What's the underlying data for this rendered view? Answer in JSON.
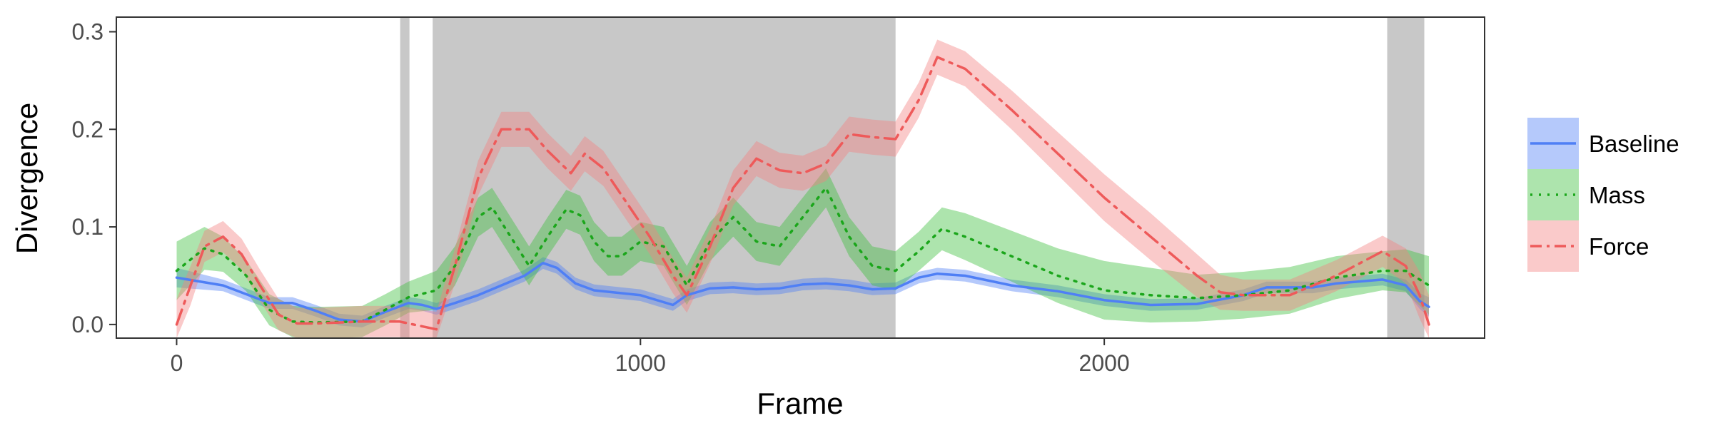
{
  "chart_data": {
    "type": "line",
    "xlabel": "Frame",
    "ylabel": "Divergence",
    "xlim": [
      -130,
      2820
    ],
    "ylim": [
      -0.014,
      0.315
    ],
    "x_ticks": [
      0,
      1000,
      2000
    ],
    "x_tick_labels": [
      "0",
      "1000",
      "2000"
    ],
    "y_ticks": [
      0.0,
      0.1,
      0.2,
      0.3
    ],
    "y_tick_labels": [
      "0.0",
      "0.1",
      "0.2",
      "0.3"
    ],
    "grid": false,
    "legend_position": "right",
    "shaded_regions": [
      {
        "start": 482,
        "end": 502
      },
      {
        "start": 552,
        "end": 1550
      },
      {
        "start": 2610,
        "end": 2690
      }
    ],
    "shade_color": "#c8c8c8",
    "series": [
      {
        "name": "Baseline",
        "color": "#4f7ff5",
        "dash": "solid",
        "points": [
          [
            0,
            0.048
          ],
          [
            100,
            0.04
          ],
          [
            200,
            0.022
          ],
          [
            250,
            0.022
          ],
          [
            300,
            0.014
          ],
          [
            350,
            0.005
          ],
          [
            400,
            0.003
          ],
          [
            450,
            0.013
          ],
          [
            500,
            0.022
          ],
          [
            530,
            0.02
          ],
          [
            560,
            0.016
          ],
          [
            600,
            0.022
          ],
          [
            650,
            0.03
          ],
          [
            700,
            0.04
          ],
          [
            750,
            0.05
          ],
          [
            790,
            0.063
          ],
          [
            820,
            0.058
          ],
          [
            860,
            0.042
          ],
          [
            900,
            0.035
          ],
          [
            1000,
            0.03
          ],
          [
            1070,
            0.02
          ],
          [
            1100,
            0.03
          ],
          [
            1150,
            0.037
          ],
          [
            1200,
            0.038
          ],
          [
            1250,
            0.036
          ],
          [
            1300,
            0.037
          ],
          [
            1350,
            0.041
          ],
          [
            1400,
            0.042
          ],
          [
            1450,
            0.04
          ],
          [
            1500,
            0.036
          ],
          [
            1550,
            0.037
          ],
          [
            1600,
            0.048
          ],
          [
            1640,
            0.052
          ],
          [
            1700,
            0.05
          ],
          [
            1800,
            0.04
          ],
          [
            1900,
            0.034
          ],
          [
            2000,
            0.025
          ],
          [
            2100,
            0.02
          ],
          [
            2200,
            0.021
          ],
          [
            2300,
            0.03
          ],
          [
            2350,
            0.038
          ],
          [
            2400,
            0.038
          ],
          [
            2450,
            0.038
          ],
          [
            2500,
            0.042
          ],
          [
            2600,
            0.046
          ],
          [
            2650,
            0.04
          ],
          [
            2680,
            0.024
          ],
          [
            2700,
            0.018
          ]
        ],
        "band": [
          0.01,
          0.006,
          0.006,
          0.006,
          0.006,
          0.006,
          0.006,
          0.006,
          0.006,
          0.006,
          0.006,
          0.006,
          0.006,
          0.006,
          0.006,
          0.006,
          0.006,
          0.006,
          0.006,
          0.006,
          0.006,
          0.006,
          0.006,
          0.006,
          0.006,
          0.006,
          0.006,
          0.006,
          0.006,
          0.006,
          0.006,
          0.006,
          0.006,
          0.006,
          0.006,
          0.006,
          0.006,
          0.006,
          0.006,
          0.006,
          0.006,
          0.006,
          0.006,
          0.006,
          0.006,
          0.006,
          0.008,
          0.01
        ]
      },
      {
        "name": "Mass",
        "color": "#1ba61b",
        "band_color": "#3cbf3c",
        "dash": "dotted",
        "points": [
          [
            0,
            0.055
          ],
          [
            60,
            0.078
          ],
          [
            100,
            0.072
          ],
          [
            150,
            0.05
          ],
          [
            200,
            0.015
          ],
          [
            250,
            0.003
          ],
          [
            300,
            0.002
          ],
          [
            400,
            0.003
          ],
          [
            450,
            0.015
          ],
          [
            500,
            0.028
          ],
          [
            560,
            0.035
          ],
          [
            600,
            0.06
          ],
          [
            650,
            0.11
          ],
          [
            680,
            0.12
          ],
          [
            720,
            0.09
          ],
          [
            760,
            0.06
          ],
          [
            800,
            0.09
          ],
          [
            840,
            0.118
          ],
          [
            870,
            0.112
          ],
          [
            900,
            0.085
          ],
          [
            930,
            0.07
          ],
          [
            960,
            0.07
          ],
          [
            1000,
            0.085
          ],
          [
            1050,
            0.08
          ],
          [
            1100,
            0.04
          ],
          [
            1150,
            0.085
          ],
          [
            1200,
            0.11
          ],
          [
            1250,
            0.085
          ],
          [
            1300,
            0.08
          ],
          [
            1350,
            0.11
          ],
          [
            1400,
            0.14
          ],
          [
            1450,
            0.09
          ],
          [
            1500,
            0.06
          ],
          [
            1550,
            0.055
          ],
          [
            1600,
            0.075
          ],
          [
            1650,
            0.098
          ],
          [
            1700,
            0.09
          ],
          [
            1800,
            0.07
          ],
          [
            1900,
            0.05
          ],
          [
            2000,
            0.035
          ],
          [
            2100,
            0.03
          ],
          [
            2200,
            0.027
          ],
          [
            2300,
            0.03
          ],
          [
            2400,
            0.035
          ],
          [
            2500,
            0.048
          ],
          [
            2600,
            0.055
          ],
          [
            2650,
            0.055
          ],
          [
            2700,
            0.04
          ]
        ],
        "band": [
          0.03,
          0.022,
          0.018,
          0.016,
          0.016,
          0.016,
          0.016,
          0.016,
          0.016,
          0.016,
          0.02,
          0.02,
          0.02,
          0.02,
          0.02,
          0.02,
          0.02,
          0.02,
          0.02,
          0.02,
          0.02,
          0.02,
          0.02,
          0.02,
          0.02,
          0.02,
          0.02,
          0.02,
          0.02,
          0.02,
          0.02,
          0.02,
          0.02,
          0.02,
          0.02,
          0.022,
          0.024,
          0.026,
          0.028,
          0.03,
          0.028,
          0.024,
          0.024,
          0.024,
          0.022,
          0.02,
          0.022,
          0.03
        ]
      },
      {
        "name": "Force",
        "color": "#ee5a5a",
        "band_color": "#f28080",
        "dash": "dashdot",
        "points": [
          [
            0,
            0.0
          ],
          [
            30,
            0.04
          ],
          [
            60,
            0.08
          ],
          [
            100,
            0.09
          ],
          [
            140,
            0.072
          ],
          [
            180,
            0.04
          ],
          [
            220,
            0.01
          ],
          [
            260,
            0.001
          ],
          [
            300,
            0.001
          ],
          [
            400,
            0.003
          ],
          [
            480,
            0.003
          ],
          [
            560,
            -0.005
          ],
          [
            600,
            0.06
          ],
          [
            650,
            0.15
          ],
          [
            700,
            0.2
          ],
          [
            760,
            0.2
          ],
          [
            800,
            0.178
          ],
          [
            850,
            0.155
          ],
          [
            880,
            0.175
          ],
          [
            920,
            0.16
          ],
          [
            970,
            0.125
          ],
          [
            1020,
            0.09
          ],
          [
            1070,
            0.05
          ],
          [
            1100,
            0.03
          ],
          [
            1150,
            0.08
          ],
          [
            1200,
            0.14
          ],
          [
            1250,
            0.17
          ],
          [
            1300,
            0.158
          ],
          [
            1350,
            0.155
          ],
          [
            1400,
            0.165
          ],
          [
            1450,
            0.195
          ],
          [
            1500,
            0.192
          ],
          [
            1550,
            0.19
          ],
          [
            1600,
            0.23
          ],
          [
            1640,
            0.274
          ],
          [
            1700,
            0.262
          ],
          [
            1800,
            0.22
          ],
          [
            1900,
            0.175
          ],
          [
            2000,
            0.13
          ],
          [
            2100,
            0.09
          ],
          [
            2200,
            0.05
          ],
          [
            2250,
            0.033
          ],
          [
            2300,
            0.03
          ],
          [
            2400,
            0.03
          ],
          [
            2500,
            0.05
          ],
          [
            2600,
            0.075
          ],
          [
            2650,
            0.06
          ],
          [
            2680,
            0.03
          ],
          [
            2700,
            0.0
          ]
        ],
        "band": [
          0.026,
          0.02,
          0.016,
          0.016,
          0.016,
          0.016,
          0.016,
          0.016,
          0.016,
          0.016,
          0.016,
          0.018,
          0.018,
          0.018,
          0.018,
          0.018,
          0.018,
          0.018,
          0.018,
          0.018,
          0.018,
          0.018,
          0.018,
          0.018,
          0.018,
          0.018,
          0.018,
          0.018,
          0.018,
          0.018,
          0.018,
          0.018,
          0.018,
          0.018,
          0.018,
          0.018,
          0.02,
          0.022,
          0.024,
          0.024,
          0.022,
          0.018,
          0.016,
          0.016,
          0.016,
          0.016,
          0.018,
          0.024,
          0.03
        ]
      }
    ]
  }
}
